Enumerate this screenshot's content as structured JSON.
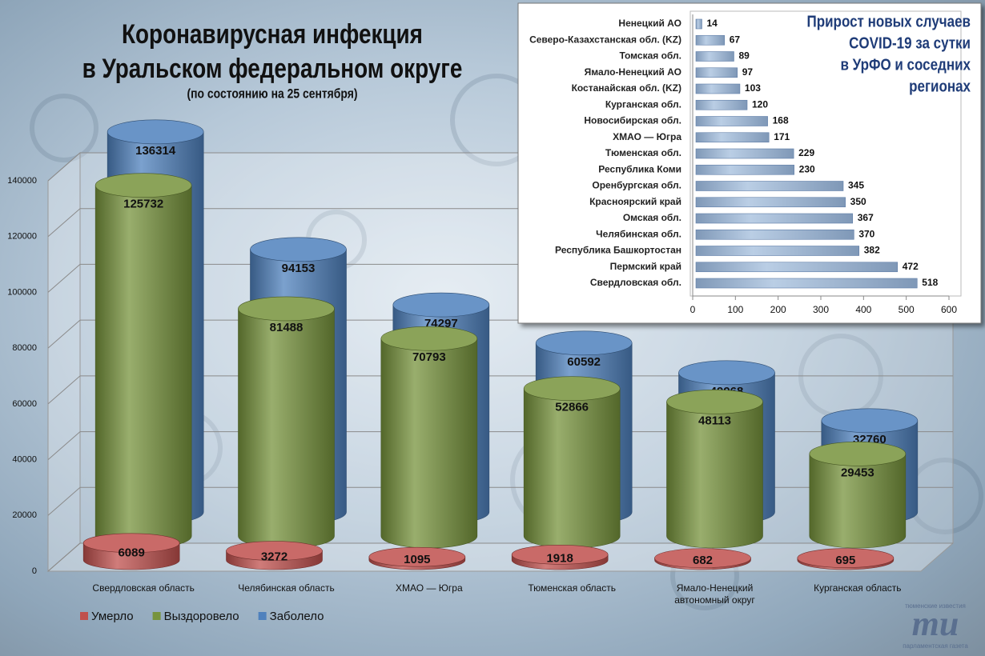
{
  "chart_data": [
    {
      "type": "bar3d",
      "title": [
        "Коронавирусная инфекция",
        "в Уральском федеральном округе"
      ],
      "subtitle": "(по состоянию на 25 сентября)",
      "categories": [
        "Свердловская область",
        "Челябинская область",
        "ХМАО — Югра",
        "Тюменская область",
        "Ямало-Ненецкий автономный округ",
        "Курганская область"
      ],
      "series": [
        {
          "name": "Умерло",
          "color": "#c0504d",
          "values": [
            6089,
            3272,
            1095,
            1918,
            682,
            695
          ]
        },
        {
          "name": "Выздоровело",
          "color": "#77933c",
          "values": [
            125732,
            81488,
            70793,
            52866,
            48113,
            29453
          ]
        },
        {
          "name": "Заболело",
          "color": "#4f81bd",
          "values": [
            136314,
            94153,
            74297,
            60592,
            49968,
            32760
          ]
        }
      ],
      "ylim": [
        0,
        140000
      ],
      "yticks": [
        0,
        20000,
        40000,
        60000,
        80000,
        100000,
        120000,
        140000
      ],
      "grid": true,
      "legend": "bottom-left"
    },
    {
      "type": "barh",
      "title": [
        "Прирост новых случаев",
        "COVID-19 за сутки",
        "в УрФО и соседних",
        "регионах"
      ],
      "categories": [
        "Ненецкий АО",
        "Северо-Казахстанская обл. (KZ)",
        "Томская обл.",
        "Ямало-Ненецкий АО",
        "Костанайская обл. (KZ)",
        "Курганская обл.",
        "Новосибирская обл.",
        "ХМАО — Югра",
        "Тюменская обл.",
        "Республика Коми",
        "Оренбургская обл.",
        "Красноярский край",
        "Омская обл.",
        "Челябинская обл.",
        "Республика Башкортостан",
        "Пермский край",
        "Свердловская обл."
      ],
      "values": [
        14,
        67,
        89,
        97,
        103,
        120,
        168,
        171,
        229,
        230,
        345,
        350,
        367,
        370,
        382,
        472,
        518
      ],
      "color": "#95b3d7",
      "xlim": [
        0,
        600
      ],
      "xticks": [
        0,
        100,
        200,
        300,
        400,
        500,
        600
      ]
    }
  ],
  "logo": {
    "top": "тюменские известия",
    "mark": "ти",
    "bottom": "парламентская газета"
  }
}
